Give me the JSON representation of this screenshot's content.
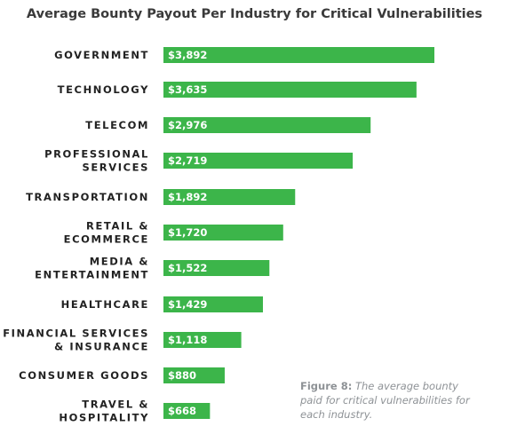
{
  "chart_data": {
    "type": "bar",
    "orientation": "horizontal",
    "title": "Average Bounty Payout Per Industry for Critical Vulnerabilities",
    "xlabel": "",
    "ylabel": "",
    "grid": false,
    "categories": [
      [
        "GOVERNMENT"
      ],
      [
        "TECHNOLOGY"
      ],
      [
        "TELECOM"
      ],
      [
        "PROFESSIONAL",
        "SERVICES"
      ],
      [
        "TRANSPORTATION"
      ],
      [
        "RETAIL &",
        "ECOMMERCE"
      ],
      [
        "MEDIA &",
        "ENTERTAINMENT"
      ],
      [
        "HEALTHCARE"
      ],
      [
        "FINANCIAL SERVICES",
        "& INSURANCE"
      ],
      [
        "CONSUMER GOODS"
      ],
      [
        "TRAVEL &",
        "HOSPITALITY"
      ]
    ],
    "values": [
      3892,
      3635,
      2976,
      2719,
      1892,
      1720,
      1522,
      1429,
      1118,
      880,
      668
    ],
    "value_labels": [
      "$3,892",
      "$3,635",
      "$2,976",
      "$2,719",
      "$1,892",
      "$1,720",
      "$1,522",
      "$1,429",
      "$1,118",
      "$880",
      "$668"
    ],
    "bar_color": "#3cb54a"
  },
  "caption": {
    "figure": "Figure 8:",
    "text": " The average bounty paid for critical vulnerabilities for each industry."
  }
}
